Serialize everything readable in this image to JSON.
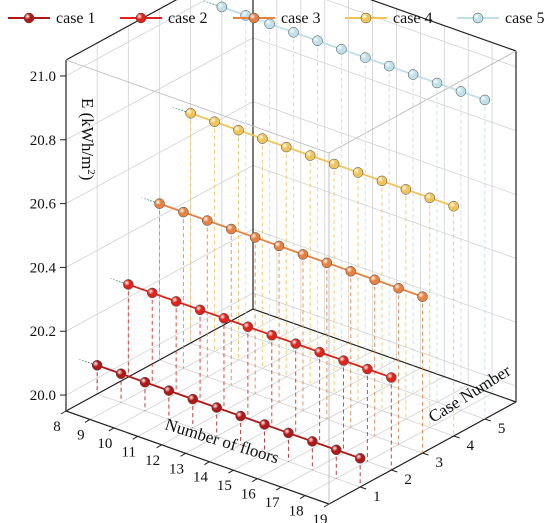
{
  "chart_data": {
    "type": "line",
    "dimensions": "3d",
    "x": [
      8,
      9,
      10,
      11,
      12,
      13,
      14,
      15,
      16,
      17,
      18,
      19
    ],
    "xlabel": "Number of floors",
    "xlim": [
      8,
      19
    ],
    "ylabel": "Case Number",
    "ycategories": [
      "1",
      "2",
      "3",
      "4",
      "5"
    ],
    "zlabel_main": "E (kWh/m",
    "zlabel_sup": "2",
    "zlabel_end": ")",
    "zlim": [
      19.95,
      21.05
    ],
    "zticks": [
      20.0,
      20.2,
      20.4,
      20.6,
      20.8,
      21.0
    ],
    "zticklabels": [
      "20.0",
      "20.2",
      "20.4",
      "20.6",
      "20.8",
      "21.0"
    ],
    "grid": true,
    "legend_position": "top",
    "series": [
      {
        "name": "case 1",
        "case": 1,
        "color": "#b01818",
        "values": [
          20.04,
          20.04,
          20.04,
          20.04,
          20.04,
          20.04,
          20.04,
          20.04,
          20.04,
          20.04,
          20.04,
          20.04
        ]
      },
      {
        "name": "case 2",
        "case": 2,
        "color": "#e0221a",
        "values": [
          20.24,
          20.24,
          20.24,
          20.24,
          20.24,
          20.24,
          20.24,
          20.24,
          20.24,
          20.24,
          20.24,
          20.24
        ]
      },
      {
        "name": "case 3",
        "case": 3,
        "color": "#e88040",
        "values": [
          20.44,
          20.44,
          20.44,
          20.44,
          20.44,
          20.44,
          20.44,
          20.44,
          20.44,
          20.44,
          20.44,
          20.44
        ]
      },
      {
        "name": "case 4",
        "case": 4,
        "color": "#f2c458",
        "values": [
          20.67,
          20.67,
          20.67,
          20.67,
          20.67,
          20.67,
          20.67,
          20.67,
          20.67,
          20.67,
          20.67,
          20.67
        ]
      },
      {
        "name": "case 5",
        "case": 5,
        "color": "#bfe0ea",
        "values": [
          20.95,
          20.95,
          20.95,
          20.95,
          20.95,
          20.95,
          20.95,
          20.95,
          20.95,
          20.95,
          20.95,
          20.95
        ]
      }
    ]
  }
}
